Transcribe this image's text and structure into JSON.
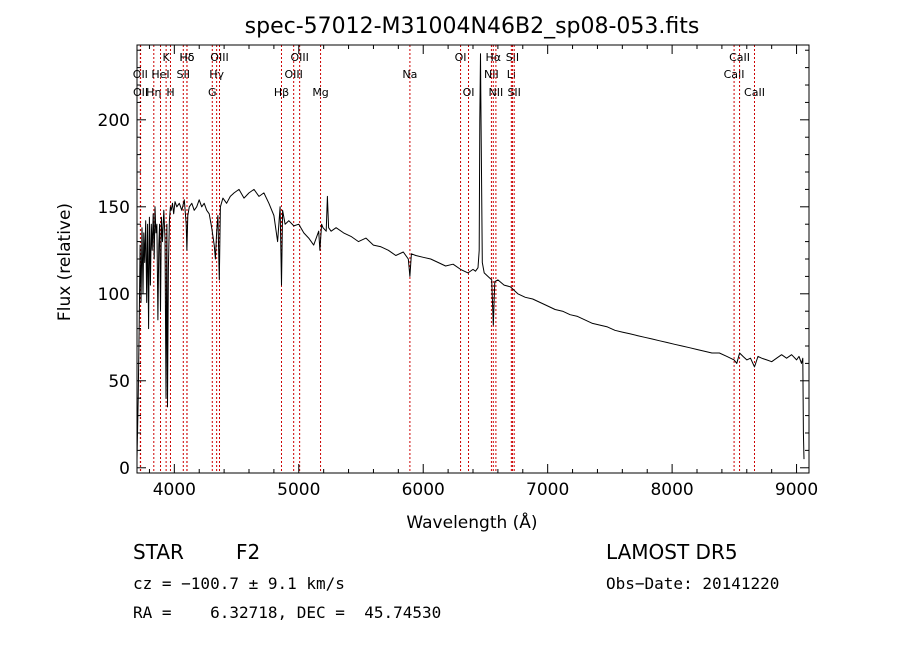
{
  "chart_data": {
    "type": "line",
    "title": "spec-57012-M31004N46B2_sp08-053.fits",
    "xlabel": "Wavelength (Å)",
    "ylabel": "Flux (relative)",
    "xlim": [
      3700,
      9100
    ],
    "ylim": [
      -3,
      243
    ],
    "xticks": [
      4000,
      5000,
      6000,
      7000,
      8000,
      9000
    ],
    "yticks": [
      0,
      50,
      100,
      150,
      200
    ],
    "line_color": "#000000",
    "marker_color": "#cc0000",
    "series": [
      {
        "x": [
          3700,
          3710,
          3718,
          3725,
          3732,
          3740,
          3748,
          3755,
          3762,
          3770,
          3778,
          3785,
          3793,
          3800,
          3808,
          3815,
          3822,
          3830,
          3838,
          3845,
          3852,
          3860,
          3868,
          3875,
          3882,
          3889,
          3896,
          3905,
          3915,
          3925,
          3933,
          3940,
          3945,
          3952,
          3960,
          3968,
          3975,
          3985,
          3995,
          4005,
          4020,
          4040,
          4060,
          4080,
          4095,
          4101,
          4108,
          4120,
          4140,
          4160,
          4180,
          4200,
          4220,
          4240,
          4260,
          4280,
          4300,
          4320,
          4330,
          4340,
          4350,
          4361,
          4370,
          4390,
          4420,
          4450,
          4480,
          4520,
          4560,
          4600,
          4640,
          4680,
          4720,
          4760,
          4800,
          4830,
          4850,
          4861,
          4870,
          4890,
          4920,
          4960,
          5000,
          5040,
          5080,
          5120,
          5160,
          5170,
          5183,
          5195,
          5220,
          5230,
          5240,
          5260,
          5300,
          5360,
          5420,
          5480,
          5540,
          5600,
          5660,
          5720,
          5780,
          5840,
          5880,
          5893,
          5905,
          5940,
          6000,
          6060,
          6120,
          6180,
          6240,
          6300,
          6330,
          6360,
          6400,
          6420,
          6440,
          6450,
          6455,
          6460,
          6463,
          6468,
          6475,
          6490,
          6520,
          6550,
          6563,
          6575,
          6600,
          6650,
          6700,
          6760,
          6820,
          6880,
          6940,
          7000,
          7060,
          7120,
          7180,
          7240,
          7300,
          7360,
          7420,
          7480,
          7540,
          7600,
          7660,
          7720,
          7780,
          7840,
          7900,
          7960,
          8020,
          8080,
          8140,
          8200,
          8260,
          8320,
          8380,
          8440,
          8498,
          8520,
          8542,
          8570,
          8600,
          8630,
          8662,
          8690,
          8720,
          8760,
          8800,
          8840,
          8880,
          8920,
          8960,
          9000,
          9020,
          9040,
          9050,
          9055,
          9060
        ],
        "y": [
          5,
          40,
          82,
          128,
          95,
          138,
          100,
          135,
          118,
          142,
          95,
          140,
          80,
          144,
          105,
          140,
          125,
          146,
          120,
          150,
          135,
          140,
          85,
          128,
          140,
          90,
          144,
          130,
          148,
          132,
          40,
          140,
          35,
          115,
          142,
          150,
          148,
          152,
          146,
          153,
          150,
          152,
          148,
          154,
          140,
          125,
          145,
          150,
          152,
          148,
          150,
          154,
          150,
          152,
          148,
          146,
          138,
          128,
          120,
          135,
          145,
          108,
          150,
          155,
          152,
          156,
          158,
          160,
          155,
          158,
          160,
          156,
          158,
          152,
          145,
          130,
          150,
          105,
          148,
          140,
          142,
          139,
          140,
          135,
          132,
          128,
          136,
          125,
          140,
          138,
          136,
          156,
          138,
          136,
          138,
          135,
          133,
          130,
          132,
          128,
          127,
          125,
          122,
          124,
          120,
          110,
          123,
          122,
          121,
          120,
          118,
          116,
          117,
          114,
          113,
          112,
          114,
          113,
          115,
          125,
          200,
          238,
          215,
          170,
          118,
          112,
          110,
          108,
          82,
          107,
          108,
          105,
          104,
          100,
          98,
          97,
          95,
          93,
          91,
          90,
          88,
          87,
          85,
          83,
          82,
          81,
          79,
          78,
          77,
          76,
          75,
          74,
          73,
          72,
          71,
          70,
          69,
          68,
          67,
          66,
          66,
          64,
          62,
          60,
          66,
          64,
          62,
          63,
          58,
          64,
          63,
          62,
          61,
          63,
          65,
          63,
          65,
          62,
          64,
          60,
          63,
          20,
          5
        ]
      }
    ],
    "lines": [
      {
        "label": "Hδ",
        "x": 4101,
        "row": 1
      },
      {
        "label": "OII",
        "x": 3727,
        "row": 2
      },
      {
        "label": "OII",
        "x": 3729,
        "row": 3
      },
      {
        "label": "Hη",
        "x": 3835,
        "row": 3
      },
      {
        "label": "HeI",
        "x": 3889,
        "row": 2
      },
      {
        "label": "K",
        "x": 3934,
        "row": 1
      },
      {
        "label": "H",
        "x": 3969,
        "row": 3
      },
      {
        "label": "SII",
        "x": 4072,
        "row": 2
      },
      {
        "label": "Hδ",
        "x": 4102,
        "row": 1
      },
      {
        "label": "Hγ",
        "x": 4340,
        "row": 2
      },
      {
        "label": "G",
        "x": 4305,
        "row": 3
      },
      {
        "label": "OIII",
        "x": 4363,
        "row": 1
      },
      {
        "label": "Hβ",
        "x": 4861,
        "row": 3
      },
      {
        "label": "OIII",
        "x": 4959,
        "row": 2
      },
      {
        "label": "OIII",
        "x": 5007,
        "row": 1
      },
      {
        "label": "Mg",
        "x": 5175,
        "row": 3
      },
      {
        "label": "Na",
        "x": 5893,
        "row": 2
      },
      {
        "label": "OI",
        "x": 6300,
        "row": 1
      },
      {
        "label": "OI",
        "x": 6364,
        "row": 3
      },
      {
        "label": "NII",
        "x": 6548,
        "row": 2
      },
      {
        "label": "Hα",
        "x": 6563,
        "row": 1
      },
      {
        "label": "NII",
        "x": 6584,
        "row": 3
      },
      {
        "label": "Li",
        "x": 6708,
        "row": 2
      },
      {
        "label": "SII",
        "x": 6717,
        "row": 1
      },
      {
        "label": "SII",
        "x": 6731,
        "row": 3
      },
      {
        "label": "CaII",
        "x": 8498,
        "row": 2
      },
      {
        "label": "CaII",
        "x": 8542,
        "row": 1
      },
      {
        "label": "CaII",
        "x": 8662,
        "row": 3
      }
    ]
  },
  "info": {
    "object_class": "STAR",
    "subclass": "F2",
    "survey": "LAMOST DR5",
    "redshift": "cz = −100.7 ± 9.1 km/s",
    "obs_date": "Obs−Date: 20141220",
    "coords": "RA =    6.32718, DEC =  45.74530"
  }
}
